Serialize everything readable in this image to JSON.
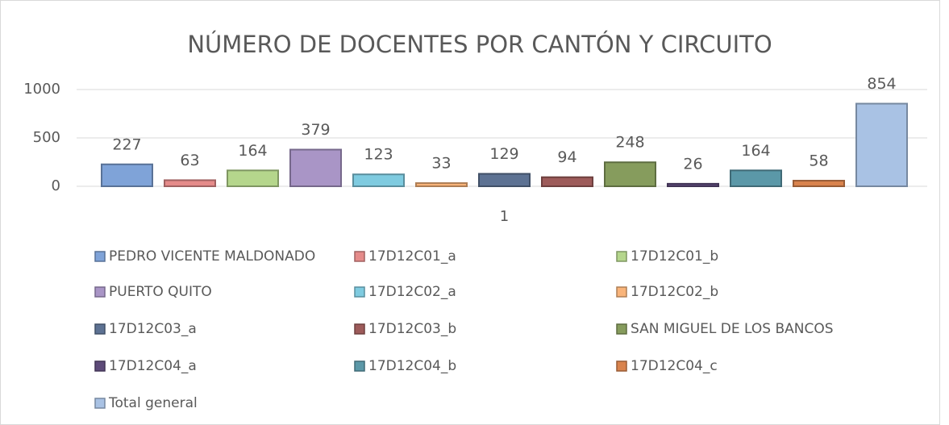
{
  "chart_data": {
    "type": "bar",
    "title": "NÚMERO DE DOCENTES POR CANTÓN Y CIRCUITO",
    "categories": [
      "1"
    ],
    "series": [
      {
        "name": "PEDRO VICENTE MALDONADO",
        "color": "#7fa3d8",
        "values": [
          227
        ]
      },
      {
        "name": "17D12C01_a",
        "color": "#e58b8a",
        "values": [
          63
        ]
      },
      {
        "name": "17D12C01_b",
        "color": "#b5d68c",
        "values": [
          164
        ]
      },
      {
        "name": "PUERTO QUITO",
        "color": "#a995c6",
        "values": [
          379
        ]
      },
      {
        "name": "17D12C02_a",
        "color": "#7fcbe0",
        "values": [
          123
        ]
      },
      {
        "name": "17D12C02_b",
        "color": "#f9b47a",
        "values": [
          33
        ]
      },
      {
        "name": "17D12C03_a",
        "color": "#5d7293",
        "values": [
          129
        ]
      },
      {
        "name": "17D12C03_b",
        "color": "#9d5b5a",
        "values": [
          94
        ]
      },
      {
        "name": "SAN MIGUEL DE LOS BANCOS",
        "color": "#869c5d",
        "values": [
          248
        ]
      },
      {
        "name": "17D12C04_a",
        "color": "#5d4a79",
        "values": [
          26
        ]
      },
      {
        "name": "17D12C04_b",
        "color": "#5b98a8",
        "values": [
          164
        ]
      },
      {
        "name": "17D12C04_c",
        "color": "#d9834d",
        "values": [
          58
        ]
      },
      {
        "name": "Total general",
        "color": "#a9c2e4",
        "values": [
          854
        ]
      }
    ],
    "ylim": [
      0,
      1000
    ],
    "yticks": [
      0,
      500,
      1000
    ],
    "grid": true,
    "legend": "bottom"
  }
}
